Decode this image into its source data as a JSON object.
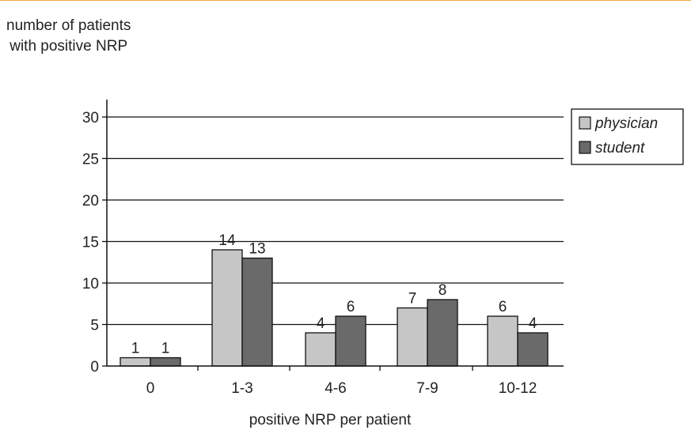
{
  "chart_data": {
    "type": "bar",
    "ylabel_lines": [
      "number of patients",
      "with positive NRP"
    ],
    "xlabel": "positive NRP per patient",
    "categories": [
      "0",
      "1-3",
      "4-6",
      "7-9",
      "10-12"
    ],
    "series": [
      {
        "name": "physician",
        "values": [
          1,
          14,
          4,
          7,
          6
        ],
        "color": "#c6c6c6"
      },
      {
        "name": "student",
        "values": [
          1,
          13,
          6,
          8,
          4
        ],
        "color": "#6a6a6a"
      }
    ],
    "ylim": [
      0,
      30
    ],
    "yticks": [
      0,
      5,
      10,
      15,
      20,
      25,
      30
    ],
    "grid": true,
    "legend_position": "top-right"
  },
  "colors": {
    "accent_rule": "#f0a848"
  }
}
